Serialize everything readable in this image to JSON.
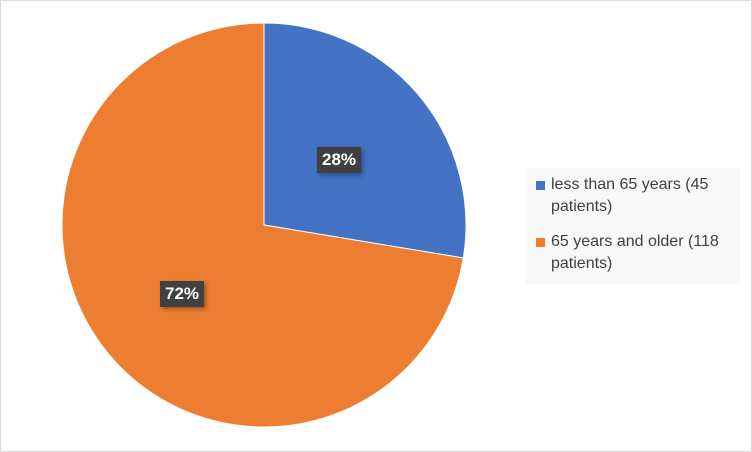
{
  "chart_data": {
    "type": "pie",
    "title": "",
    "slices": [
      {
        "label": "less than 65 years (45 patients)",
        "value": 45,
        "percent_label": "28%",
        "color": "#4472C4"
      },
      {
        "label": "65 years and older (118 patients)",
        "value": 118,
        "percent_label": "72%",
        "color": "#ED7D31"
      }
    ],
    "legend_position": "right"
  }
}
